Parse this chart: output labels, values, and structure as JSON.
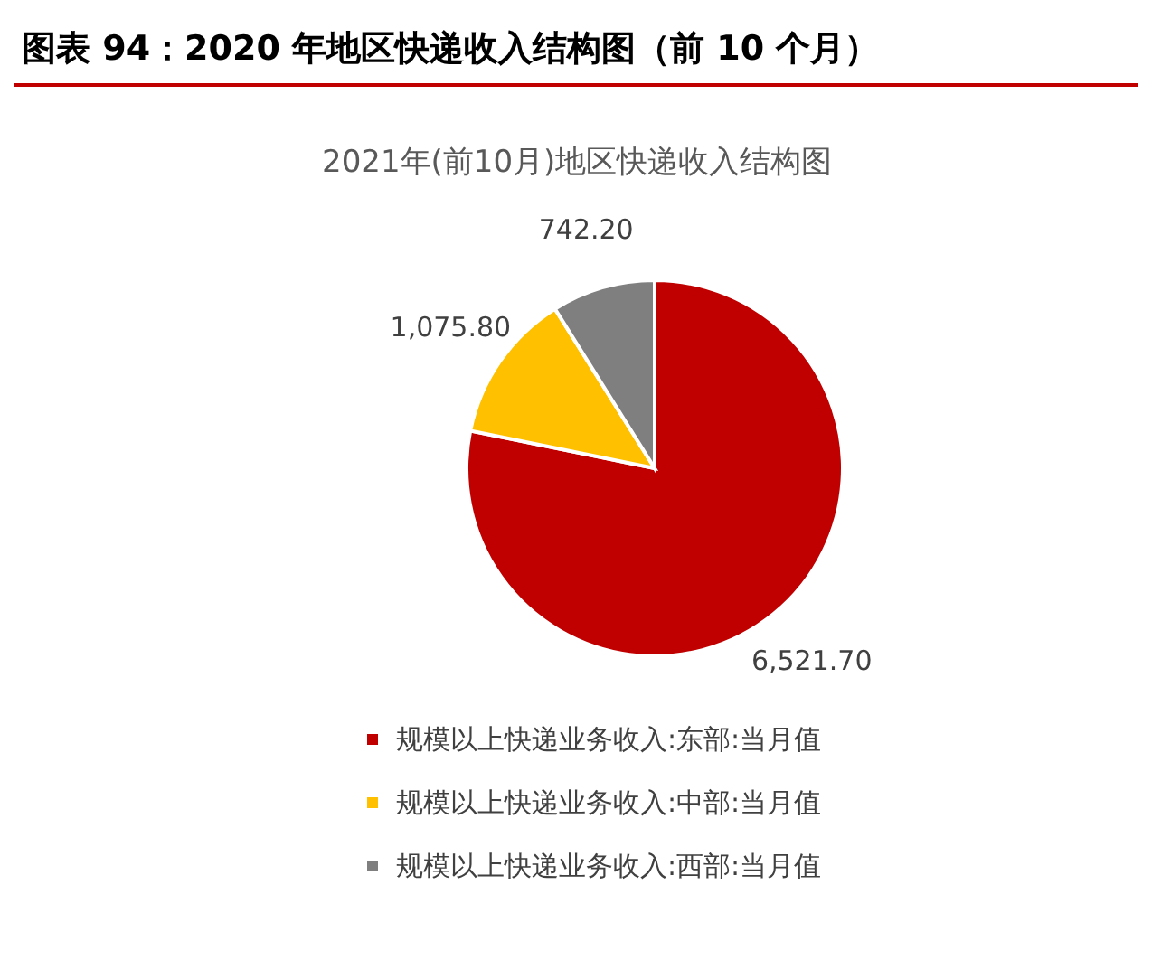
{
  "chart_data": {
    "type": "pie",
    "title": "图表 94：2020 年地区快递收入结构图（前 10 个月）",
    "subtitle": "2021年(前10月)地区快递收入结构图",
    "categories": [
      "规模以上快递业务收入:东部:当月值",
      "规模以上快递业务收入:中部:当月值",
      "规模以上快递业务收入:西部:当月值"
    ],
    "values": [
      6521.7,
      1075.8,
      742.2
    ],
    "value_labels": [
      "6,521.70",
      "1,075.80",
      "742.20"
    ],
    "colors": [
      "#c00000",
      "#ffc000",
      "#7f7f7f"
    ],
    "legend": "bottom"
  }
}
